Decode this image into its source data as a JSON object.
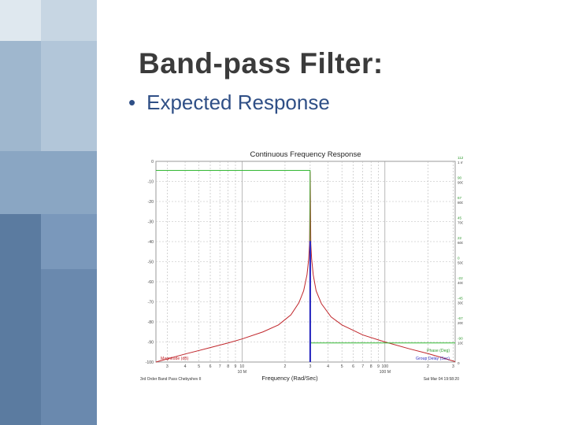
{
  "slide": {
    "title": "Band-pass Filter:",
    "bullet": "Expected Response"
  },
  "colors": {
    "sidebar_dark": "#5e7ea3",
    "sidebar_mid": "#7f9cbd",
    "sidebar_light": "#a8bfd4",
    "title": "#3b3b3b",
    "bullet": "#2f4f86",
    "magnitude": "#c0262b",
    "phase": "#33b833",
    "group_delay": "#2a2ac0"
  },
  "chart_data": {
    "type": "line",
    "title": "Continuous Frequency Response",
    "xlabel": "Frequency (Rad/Sec)",
    "x_scale": "log",
    "xlim": [
      2.5,
      310
    ],
    "x_ticks": [
      {
        "x": 3,
        "label": "3"
      },
      {
        "x": 4,
        "label": "4"
      },
      {
        "x": 5,
        "label": "5"
      },
      {
        "x": 6,
        "label": "6"
      },
      {
        "x": 7,
        "label": "7"
      },
      {
        "x": 8,
        "label": "8"
      },
      {
        "x": 9,
        "label": "9"
      },
      {
        "x": 10,
        "label": "10 M"
      },
      {
        "x": 20,
        "label": "2"
      },
      {
        "x": 30,
        "label": "3"
      },
      {
        "x": 40,
        "label": "4"
      },
      {
        "x": 50,
        "label": "5"
      },
      {
        "x": 60,
        "label": "6"
      },
      {
        "x": 70,
        "label": "7"
      },
      {
        "x": 80,
        "label": "8"
      },
      {
        "x": 90,
        "label": "9"
      },
      {
        "x": 100,
        "label": "100 M"
      },
      {
        "x": 200,
        "label": "2"
      },
      {
        "x": 300,
        "label": "3"
      }
    ],
    "y_left": {
      "ylim": [
        -100,
        0
      ],
      "ticks": [
        "0",
        "-10",
        "-20",
        "-30",
        "-40",
        "-50",
        "-60",
        "-70",
        "-80",
        "-90",
        "-100"
      ]
    },
    "y_right_phase": [
      "112",
      "90",
      "67",
      "45",
      "22",
      "0",
      "-22",
      "-45",
      "-67",
      "-90"
    ],
    "y_right_delay": [
      "1 m",
      "900 u",
      "800 u",
      "700 u",
      "600 u",
      "500 u",
      "400 u",
      "300 u",
      "200 u",
      "100 u",
      "0"
    ],
    "series": [
      {
        "name": "Magnitude (dB)",
        "color": "#c0262b",
        "x": [
          2.5,
          4,
          6,
          8,
          10,
          14,
          18,
          22,
          25,
          27,
          28.5,
          29.3,
          29.7,
          30,
          30.3,
          30.7,
          31.5,
          33,
          36,
          42,
          50,
          70,
          100,
          150,
          200,
          250,
          310
        ],
        "y": [
          -100,
          -96,
          -92.8,
          -90.5,
          -88.5,
          -85,
          -81.5,
          -76.5,
          -70.5,
          -64.5,
          -56.5,
          -48.5,
          -41,
          -5,
          -41,
          -48.5,
          -56.5,
          -64.5,
          -71,
          -77.5,
          -81.5,
          -86.5,
          -90,
          -93.5,
          -95.8,
          -97.8,
          -99.8
        ]
      },
      {
        "name": "Phase (Deg)",
        "color": "#33b833",
        "x": [
          2.5,
          29.95,
          29.95,
          30.05,
          30.05,
          310
        ],
        "y": [
          -4.5,
          -4.5,
          -45,
          -45,
          -90.5,
          -90.5
        ]
      },
      {
        "name": "Group Delay (Sec)",
        "color": "#2a2ac0",
        "x": [
          29.9,
          29.9,
          30.1,
          30.1
        ],
        "y": [
          -100,
          -40,
          -40,
          -100
        ]
      }
    ],
    "legend_labels": {
      "magnitude": "Magnitude (dB)",
      "phase": "Phase (Deg)",
      "delay": "Group Delay (Sec)"
    },
    "footer_left": "3rd Order Band Pass Chebyshev II",
    "footer_right": "Sat Mar 04 19:58:20"
  }
}
